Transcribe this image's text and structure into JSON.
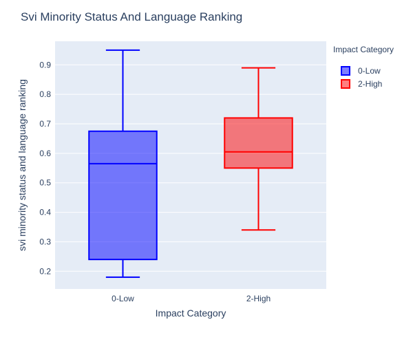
{
  "chart_data": {
    "type": "box",
    "title": "Svi Minority Status And Language Ranking",
    "xlabel": "Impact Category",
    "ylabel": "svi minority status and language ranking",
    "ylim": [
      0.14,
      0.98
    ],
    "yticks": [
      0.2,
      0.3,
      0.4,
      0.5,
      0.6,
      0.7,
      0.8,
      0.9
    ],
    "grid": true,
    "legend": {
      "title": "Impact Category",
      "position": "right"
    },
    "series": [
      {
        "name": "0-Low",
        "color": "#0000ff",
        "fill": "rgba(0,0,255,0.5)",
        "min": 0.18,
        "q1": 0.24,
        "median": 0.565,
        "q3": 0.675,
        "max": 0.95
      },
      {
        "name": "2-High",
        "color": "#ff0000",
        "fill": "rgba(255,0,0,0.5)",
        "min": 0.34,
        "q1": 0.55,
        "median": 0.605,
        "q3": 0.72,
        "max": 0.89
      }
    ]
  }
}
